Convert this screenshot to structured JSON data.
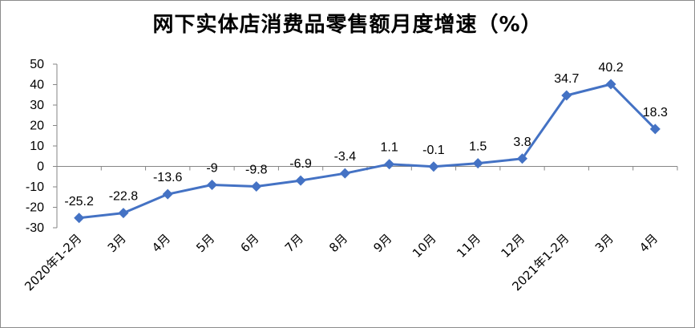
{
  "chart_data": {
    "type": "line",
    "title": "网下实体店消费品零售额月度增速（%）",
    "categories": [
      "2020年1-2月",
      "3月",
      "4月",
      "5月",
      "6月",
      "7月",
      "8月",
      "9月",
      "10月",
      "11月",
      "12月",
      "2021年1-2月",
      "3月",
      "4月"
    ],
    "series": [
      {
        "values": [
          -25.2,
          -22.8,
          -13.6,
          -9,
          -9.8,
          -6.9,
          -3.4,
          1.1,
          -0.1,
          1.5,
          3.8,
          34.7,
          40.2,
          18.3
        ],
        "labels": [
          "-25.2",
          "-22.8",
          "-13.6",
          "-9",
          "-9.8",
          "-6.9",
          "-3.4",
          "1.1",
          "-0.1",
          "1.5",
          "3.8",
          "34.7",
          "40.2",
          "18.3"
        ],
        "color": "#4472c4"
      }
    ],
    "ylim": [
      -30,
      50
    ],
    "yticks": [
      -30,
      -20,
      -10,
      0,
      10,
      20,
      30,
      40,
      50
    ],
    "grid": false,
    "legend": "none",
    "marker": "diamond"
  }
}
